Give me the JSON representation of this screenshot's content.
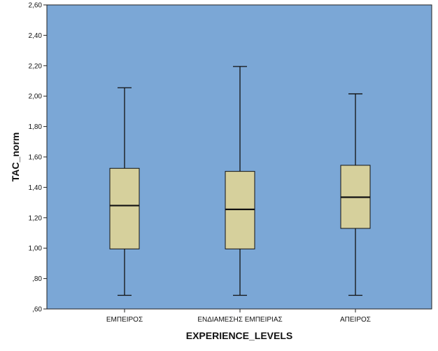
{
  "chart_data": {
    "type": "boxplot",
    "xlabel": "EXPERIENCE_LEVELS",
    "ylabel": "TAC_norm",
    "ylim": [
      0.6,
      2.6
    ],
    "yticks": [
      {
        "value": 0.6,
        "label": ",60"
      },
      {
        "value": 0.8,
        "label": ",80"
      },
      {
        "value": 1.0,
        "label": "1,00"
      },
      {
        "value": 1.2,
        "label": "1,20"
      },
      {
        "value": 1.4,
        "label": "1,40"
      },
      {
        "value": 1.6,
        "label": "1,60"
      },
      {
        "value": 1.8,
        "label": "1,80"
      },
      {
        "value": 2.0,
        "label": "2,00"
      },
      {
        "value": 2.2,
        "label": "2,20"
      },
      {
        "value": 2.4,
        "label": "2,40"
      },
      {
        "value": 2.6,
        "label": "2,60"
      }
    ],
    "categories": [
      "ΕΜΠΕΙΡΟΣ",
      "ΕΝΔΙΑΜΕΣΗΣ ΕΜΠΕΙΡΙΑΣ",
      "ΑΠΕΙΡΟΣ"
    ],
    "boxes": [
      {
        "min": 0.69,
        "q1": 0.995,
        "median": 1.28,
        "q3": 1.525,
        "max": 2.055
      },
      {
        "min": 0.69,
        "q1": 0.995,
        "median": 1.255,
        "q3": 1.505,
        "max": 2.195
      },
      {
        "min": 0.69,
        "q1": 1.13,
        "median": 1.335,
        "q3": 1.545,
        "max": 2.015
      }
    ],
    "grid": false,
    "colors": {
      "plot_background": "#7ba7d6",
      "box_fill": "#d6d09c",
      "line": "#111111"
    }
  }
}
